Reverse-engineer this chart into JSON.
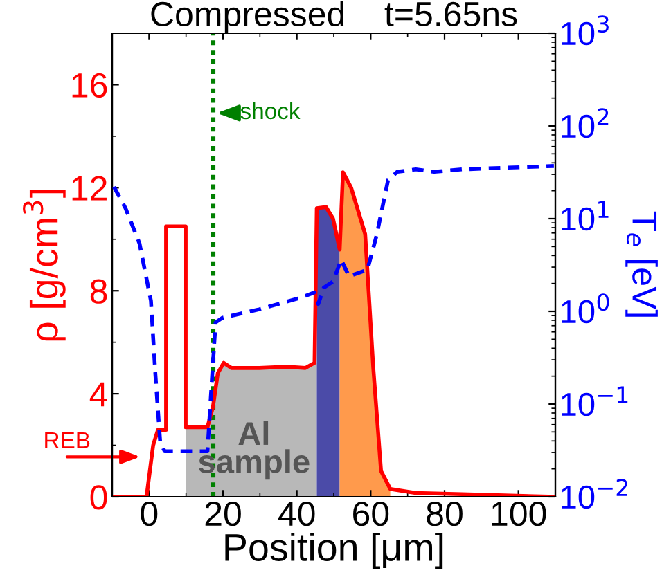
{
  "chart_data": {
    "type": "line",
    "title": "Compressed    t=5.65ns",
    "xlabel": "Position [μm]",
    "ylabel": "ρ [g/cm$^{3}$]",
    "y2label": "T$_{e}$ [eV]",
    "xlim": [
      -10,
      110
    ],
    "xticks": [
      0,
      20,
      40,
      60,
      80,
      100
    ],
    "ylim": [
      0,
      18
    ],
    "yticks": [
      0,
      4,
      8,
      12,
      16
    ],
    "y2lim": [
      0.01,
      1000
    ],
    "log": "y2",
    "y2ticks": [
      {
        "value": 0.01,
        "label": "10$^{−2}$"
      },
      {
        "value": 0.1,
        "label": "10$^{−1}$"
      },
      {
        "value": 1,
        "label": "10$^{0}$"
      },
      {
        "value": 10,
        "label": "10$^{1}$"
      },
      {
        "value": 100,
        "label": "10$^{2}$"
      },
      {
        "value": 1000,
        "label": "10$^{3}$"
      }
    ],
    "grid": false,
    "legend": false,
    "series": [
      {
        "type": "area",
        "color": "#b8b8b8",
        "x": [
          9.9,
          15.8,
          17.3,
          18.6,
          20.2,
          22.3,
          29.8,
          37.3,
          42.3,
          44.8,
          45.4
        ],
        "values": [
          2.7,
          2.7,
          3.5,
          4.8,
          5.2,
          5.0,
          5.0,
          5.05,
          5.0,
          5.2,
          5.2
        ]
      },
      {
        "type": "area",
        "color": "#4b4ba8",
        "x": [
          45.4,
          47.9,
          49.8,
          51.6
        ],
        "values": [
          11.2,
          11.25,
          10.8,
          9.6
        ]
      },
      {
        "type": "area",
        "color": "#ff9a4c",
        "x": [
          51.6,
          52.5,
          54.7,
          58.5,
          60.7,
          62.8,
          65.3
        ],
        "values": [
          9.6,
          12.6,
          12.0,
          10.2,
          5.0,
          1.0,
          0.3
        ]
      },
      {
        "color": "#ff0000",
        "line_style": "solid",
        "x": [
          -9.5,
          -0.7,
          1.1,
          2.4,
          4.6,
          4.6,
          9.9,
          9.9,
          15.8,
          17.3,
          18.6,
          20.2,
          22.3,
          29.8,
          37.3,
          42.3,
          44.8,
          45.4,
          47.9,
          49.8,
          51.6,
          52.5,
          54.7,
          58.5,
          60.7,
          62.8,
          65.3,
          72.2,
          84.7,
          109.6
        ],
        "values": [
          0,
          0,
          2.0,
          2.6,
          2.6,
          10.5,
          10.5,
          2.7,
          2.7,
          3.5,
          4.8,
          5.2,
          5.0,
          5.0,
          5.05,
          5.0,
          5.2,
          11.2,
          11.25,
          10.8,
          9.6,
          12.6,
          12.0,
          10.2,
          5.0,
          1.0,
          0.3,
          0.15,
          0.1,
          0
        ]
      },
      {
        "axis": "y2",
        "color": "#0000ff",
        "line_style": "dashed",
        "x": [
          -9.5,
          -6.4,
          -2.6,
          0.5,
          1.7,
          3.0,
          4.2,
          15.8,
          17.1,
          18.0,
          19.8,
          29.8,
          41,
          44.8,
          45.8,
          47.3,
          49.8,
          52,
          54.1,
          59.1,
          61.6,
          64.7,
          67.2,
          72.2,
          77.2,
          84.7,
          109.6
        ],
        "values": [
          22,
          13,
          5.4,
          1.3,
          0.21,
          0.039,
          0.031,
          0.031,
          0.21,
          0.76,
          0.85,
          1.05,
          1.4,
          1.6,
          1.2,
          1.8,
          2.1,
          3.6,
          2.4,
          2.8,
          6.6,
          26,
          32,
          34,
          32,
          34,
          37
        ]
      }
    ],
    "ref_lines": [
      {
        "axis": "x",
        "value": 17.3,
        "color": "#008000",
        "line_style": "dotted"
      }
    ],
    "annotations": [
      {
        "text": "shock",
        "x": 17.3,
        "y": 14.9
      },
      {
        "text": "REB",
        "x": -1.4,
        "y": 1.55
      },
      "Al\nsample"
    ]
  }
}
